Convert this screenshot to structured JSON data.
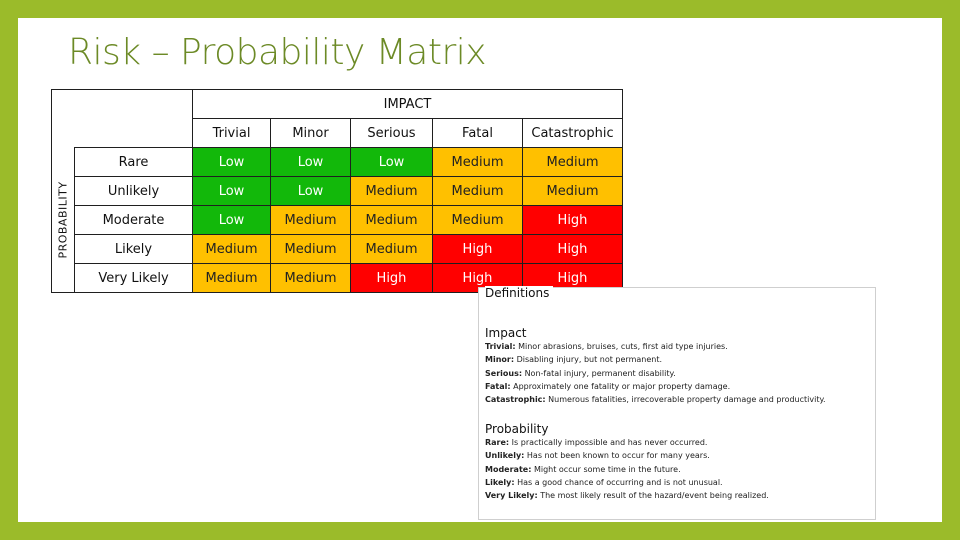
{
  "title": "Risk – Probability Matrix",
  "matrix": {
    "impact_label": "IMPACT",
    "probability_label": "PROBABILITY",
    "columns": [
      "Trivial",
      "Minor",
      "Serious",
      "Fatal",
      "Catastrophic"
    ],
    "rows": [
      {
        "label": "Rare",
        "cells": [
          "Low",
          "Low",
          "Low",
          "Medium",
          "Medium"
        ]
      },
      {
        "label": "Unlikely",
        "cells": [
          "Low",
          "Low",
          "Medium",
          "Medium",
          "Medium"
        ]
      },
      {
        "label": "Moderate",
        "cells": [
          "Low",
          "Medium",
          "Medium",
          "Medium",
          "High"
        ]
      },
      {
        "label": "Likely",
        "cells": [
          "Medium",
          "Medium",
          "Medium",
          "High",
          "High"
        ]
      },
      {
        "label": "Very Likely",
        "cells": [
          "Medium",
          "Medium",
          "High",
          "High",
          "High"
        ]
      }
    ],
    "colors": {
      "Low": "#12b80a",
      "Medium": "#ffc000",
      "High": "#ff0000"
    }
  },
  "definitions": {
    "heading": "Definitions",
    "impact": {
      "title": "Impact",
      "items": [
        {
          "term": "Trivial:",
          "text": " Minor abrasions, bruises, cuts, first aid type injuries."
        },
        {
          "term": "Minor:",
          "text": " Disabling injury, but not permanent."
        },
        {
          "term": "Serious:",
          "text": " Non-fatal injury, permanent disability."
        },
        {
          "term": "Fatal:",
          "text": " Approximately one fatality or major property damage."
        },
        {
          "term": "Catastrophic:",
          "text": " Numerous fatalities, irrecoverable property damage and productivity."
        }
      ]
    },
    "probability": {
      "title": "Probability",
      "items": [
        {
          "term": "Rare:",
          "text": " Is practically impossible and has never occurred."
        },
        {
          "term": "Unlikely:",
          "text": " Has not been known to occur for many years."
        },
        {
          "term": "Moderate:",
          "text": " Might occur some time in the future."
        },
        {
          "term": "Likely:",
          "text": " Has a good chance of occurring and is not unusual."
        },
        {
          "term": "Very Likely:",
          "text": " The most likely result of the hazard/event being realized."
        }
      ]
    }
  }
}
